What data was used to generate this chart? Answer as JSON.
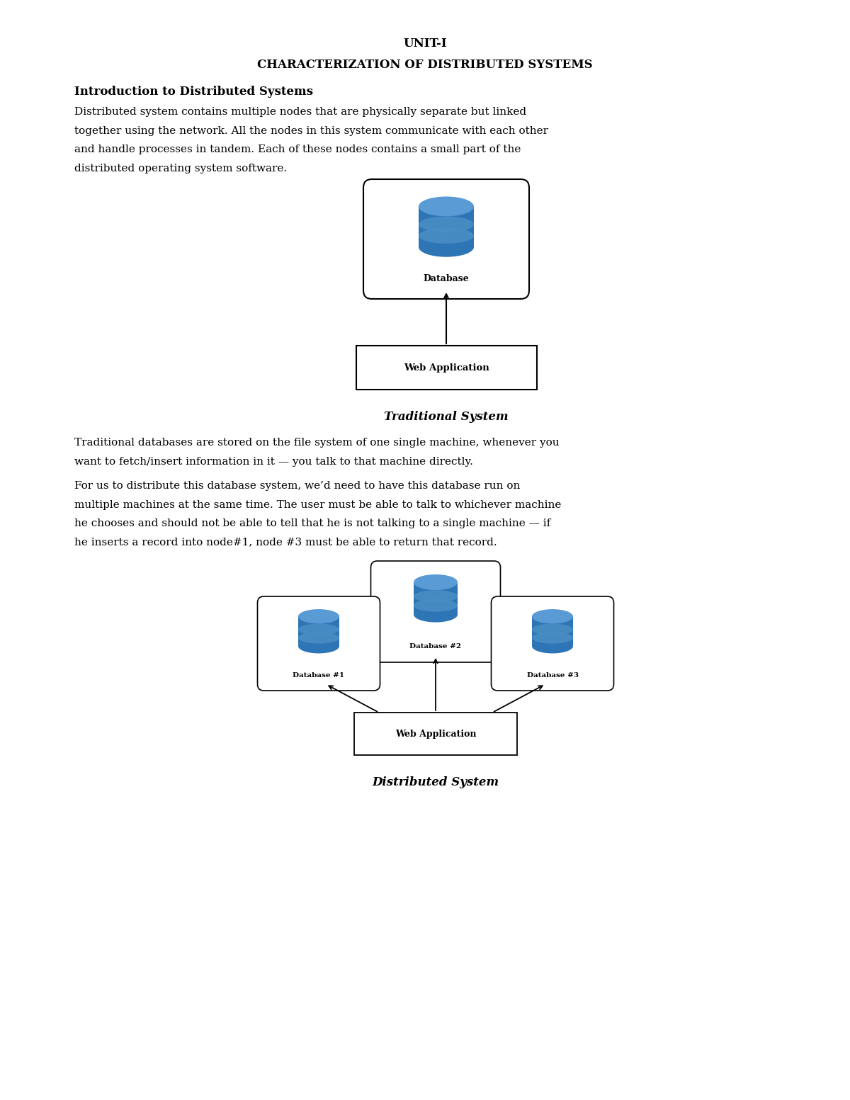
{
  "title1": "UNIT-I",
  "title2": "CHARACTERIZATION OF DISTRIBUTED SYSTEMS",
  "section_heading": "Introduction to Distributed Systems",
  "para1_lines": [
    "Distributed system contains multiple nodes that are physically separate but linked",
    "together using the network. All the nodes in this system communicate with each other",
    "and handle processes in tandem. Each of these nodes contains a small part of the",
    "distributed operating system software."
  ],
  "caption1": "Traditional System",
  "para2_lines": [
    "Traditional databases are stored on the file system of one single machine, whenever you",
    "want to fetch/insert information in it — you talk to that machine directly."
  ],
  "para3_lines": [
    "For us to distribute this database system, we’d need to have this database run on",
    "multiple machines at the same time. The user must be able to talk to whichever machine",
    "he chooses and should not be able to tell that he is not talking to a single machine — if",
    "he inserts a record into node#1, node #3 must be able to return that record."
  ],
  "caption2": "Distributed System",
  "bg_color": "#ffffff",
  "text_color": "#000000",
  "db_top_color": "#5b9bd5",
  "db_mid_color": "#4a8ec4",
  "db_body_color": "#2e75b6",
  "box_border_color": "#000000"
}
